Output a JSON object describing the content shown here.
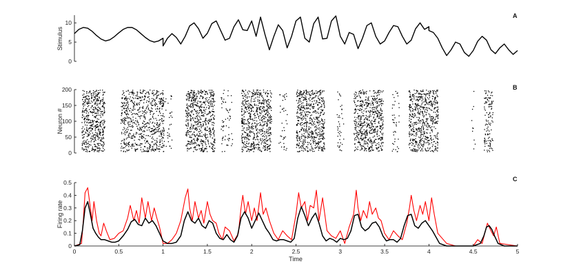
{
  "chart_data": [
    {
      "panel": "A",
      "type": "line",
      "ylabel": "Stimulus",
      "xlim": [
        0,
        5
      ],
      "ylim": [
        0,
        12
      ],
      "yticks": [
        0,
        5,
        10
      ],
      "series": [
        {
          "color": "#000000",
          "x": [
            0,
            0.05,
            0.1,
            0.15,
            0.2,
            0.25,
            0.3,
            0.35,
            0.4,
            0.45,
            0.5,
            0.55,
            0.6,
            0.65,
            0.7,
            0.75,
            0.8,
            0.85,
            0.9,
            0.95,
            1.0,
            1.0,
            1.05,
            1.1,
            1.15,
            1.2,
            1.25,
            1.3,
            1.35,
            1.4,
            1.45,
            1.5,
            1.55,
            1.6,
            1.65,
            1.7,
            1.75,
            1.8,
            1.85,
            1.9,
            1.95,
            2.0,
            2.05,
            2.1,
            2.15,
            2.2,
            2.25,
            2.3,
            2.35,
            2.4,
            2.45,
            2.5,
            2.55,
            2.6,
            2.65,
            2.7,
            2.75,
            2.8,
            2.85,
            2.9,
            2.95,
            3.0,
            3.05,
            3.1,
            3.15,
            3.2,
            3.25,
            3.3,
            3.35,
            3.4,
            3.45,
            3.5,
            3.55,
            3.6,
            3.65,
            3.7,
            3.75,
            3.8,
            3.85,
            3.9,
            3.95,
            4.0,
            4.0,
            4.05,
            4.1,
            4.15,
            4.2,
            4.25,
            4.3,
            4.35,
            4.4,
            4.45,
            4.5,
            4.55,
            4.6,
            4.65,
            4.7,
            4.75,
            4.8,
            4.85,
            4.9,
            4.95,
            5.0
          ],
          "y": [
            7.2,
            8.3,
            8.8,
            8.6,
            7.8,
            6.7,
            5.8,
            5.3,
            5.6,
            6.4,
            7.4,
            8.3,
            8.8,
            8.8,
            8.2,
            7.2,
            6.2,
            5.4,
            5.0,
            5.3,
            6.0,
            4.0,
            6.0,
            7.2,
            6.2,
            4.5,
            6.5,
            9.2,
            10.0,
            8.5,
            6.0,
            7.3,
            9.8,
            10.5,
            8.0,
            5.5,
            6.0,
            9.0,
            10.8,
            8.2,
            8.0,
            10.5,
            6.5,
            11.5,
            7.0,
            3.0,
            6.5,
            9.5,
            8.0,
            3.5,
            6.5,
            10.5,
            11.5,
            6.0,
            5.0,
            9.8,
            11.5,
            5.8,
            6.0,
            10.5,
            11.8,
            6.5,
            4.5,
            7.5,
            7.0,
            3.3,
            6.0,
            9.3,
            10.0,
            6.5,
            4.5,
            5.3,
            7.5,
            9.3,
            9.0,
            6.5,
            4.5,
            5.5,
            8.5,
            10.0,
            8.3,
            9.0,
            8.0,
            7.5,
            6.0,
            3.5,
            1.5,
            3.0,
            5.0,
            4.5,
            2.3,
            1.3,
            2.8,
            5.2,
            6.5,
            5.5,
            3.0,
            2.0,
            3.5,
            4.5,
            3.0,
            1.8,
            2.8
          ]
        }
      ]
    },
    {
      "panel": "B",
      "type": "scatter",
      "ylabel": "Neuron #",
      "xlim": [
        0,
        5
      ],
      "ylim": [
        0,
        200
      ],
      "yticks": [
        0,
        50,
        100,
        150,
        200
      ],
      "marker_color": "#000000",
      "burst_segments": [
        {
          "x": [
            0.08,
            0.34
          ],
          "neurons": [
            5,
            200
          ],
          "density": 520
        },
        {
          "x": [
            0.52,
            1.01
          ],
          "neurons": [
            5,
            200
          ],
          "density": 720
        },
        {
          "x": [
            1.02,
            1.1
          ],
          "neurons": [
            5,
            200
          ],
          "density": 30
        },
        {
          "x": [
            1.25,
            1.58
          ],
          "neurons": [
            5,
            200
          ],
          "density": 620
        },
        {
          "x": [
            1.65,
            1.78
          ],
          "neurons": [
            5,
            200
          ],
          "density": 60
        },
        {
          "x": [
            1.88,
            2.22
          ],
          "neurons": [
            5,
            200
          ],
          "density": 640
        },
        {
          "x": [
            2.3,
            2.4
          ],
          "neurons": [
            5,
            200
          ],
          "density": 40
        },
        {
          "x": [
            2.5,
            2.82
          ],
          "neurons": [
            5,
            200
          ],
          "density": 620
        },
        {
          "x": [
            2.96,
            3.04
          ],
          "neurons": [
            5,
            200
          ],
          "density": 40
        },
        {
          "x": [
            3.15,
            3.48
          ],
          "neurons": [
            5,
            200
          ],
          "density": 600
        },
        {
          "x": [
            3.58,
            3.66
          ],
          "neurons": [
            5,
            200
          ],
          "density": 40
        },
        {
          "x": [
            3.77,
            4.1
          ],
          "neurons": [
            5,
            200
          ],
          "density": 600
        },
        {
          "x": [
            4.62,
            4.72
          ],
          "neurons": [
            5,
            200
          ],
          "density": 120
        },
        {
          "x": [
            4.47,
            4.52
          ],
          "neurons": [
            5,
            200
          ],
          "density": 10
        }
      ]
    },
    {
      "panel": "C",
      "type": "line",
      "xlabel": "Time",
      "ylabel": "Firing rate",
      "xlim": [
        0,
        5
      ],
      "ylim": [
        0,
        0.5
      ],
      "yticks": [
        0,
        0.1,
        0.2,
        0.3,
        0.4,
        0.5
      ],
      "xticks": [
        0,
        0.5,
        1,
        1.5,
        2,
        2.5,
        3,
        3.5,
        4,
        4.5,
        5
      ],
      "series": [
        {
          "color": "#ff0000",
          "x": [
            0,
            0.08,
            0.1,
            0.12,
            0.15,
            0.18,
            0.2,
            0.22,
            0.25,
            0.28,
            0.3,
            0.33,
            0.36,
            0.4,
            0.45,
            0.5,
            0.55,
            0.6,
            0.63,
            0.67,
            0.7,
            0.73,
            0.76,
            0.8,
            0.83,
            0.87,
            0.9,
            0.93,
            0.96,
            1.0,
            1.05,
            1.1,
            1.15,
            1.2,
            1.25,
            1.28,
            1.3,
            1.33,
            1.36,
            1.4,
            1.43,
            1.46,
            1.5,
            1.53,
            1.56,
            1.6,
            1.63,
            1.67,
            1.7,
            1.75,
            1.8,
            1.85,
            1.88,
            1.9,
            1.93,
            1.96,
            2.0,
            2.03,
            2.06,
            2.1,
            2.13,
            2.16,
            2.2,
            2.25,
            2.3,
            2.35,
            2.4,
            2.45,
            2.5,
            2.53,
            2.56,
            2.6,
            2.63,
            2.66,
            2.7,
            2.73,
            2.76,
            2.8,
            2.85,
            2.9,
            2.95,
            3.0,
            3.05,
            3.1,
            3.15,
            3.18,
            3.2,
            3.23,
            3.26,
            3.3,
            3.33,
            3.36,
            3.4,
            3.43,
            3.46,
            3.5,
            3.55,
            3.6,
            3.65,
            3.7,
            3.75,
            3.78,
            3.8,
            3.83,
            3.86,
            3.9,
            3.93,
            3.96,
            4.0,
            4.03,
            4.06,
            4.1,
            4.2,
            4.3,
            4.4,
            4.5,
            4.55,
            4.6,
            4.63,
            4.66,
            4.7,
            4.73,
            4.76,
            4.8,
            5.0
          ],
          "y": [
            0,
            0.02,
            0.2,
            0.42,
            0.46,
            0.3,
            0.2,
            0.35,
            0.2,
            0.1,
            0.08,
            0.18,
            0.12,
            0.05,
            0.06,
            0.1,
            0.12,
            0.22,
            0.32,
            0.2,
            0.28,
            0.18,
            0.38,
            0.22,
            0.35,
            0.2,
            0.3,
            0.22,
            0.15,
            0.02,
            0.02,
            0.05,
            0.1,
            0.2,
            0.38,
            0.45,
            0.3,
            0.2,
            0.35,
            0.22,
            0.28,
            0.18,
            0.35,
            0.25,
            0.2,
            0.18,
            0.1,
            0.05,
            0.15,
            0.12,
            0.04,
            0.1,
            0.3,
            0.4,
            0.25,
            0.35,
            0.2,
            0.3,
            0.2,
            0.42,
            0.25,
            0.3,
            0.2,
            0.1,
            0.05,
            0.12,
            0.08,
            0.05,
            0.25,
            0.42,
            0.3,
            0.35,
            0.2,
            0.32,
            0.3,
            0.44,
            0.2,
            0.38,
            0.12,
            0.08,
            0.06,
            0.12,
            0.02,
            0.15,
            0.25,
            0.44,
            0.3,
            0.2,
            0.28,
            0.22,
            0.35,
            0.25,
            0.3,
            0.22,
            0.2,
            0.1,
            0.05,
            0.12,
            0.08,
            0.05,
            0.18,
            0.3,
            0.4,
            0.28,
            0.2,
            0.32,
            0.25,
            0.35,
            0.2,
            0.38,
            0.25,
            0.1,
            0.02,
            0.0,
            0.0,
            0.0,
            0.05,
            0.02,
            0.1,
            0.18,
            0.12,
            0.08,
            0.15,
            0.02,
            0.0
          ]
        },
        {
          "color": "#000000",
          "x": [
            0,
            0.06,
            0.09,
            0.12,
            0.15,
            0.18,
            0.21,
            0.24,
            0.27,
            0.3,
            0.34,
            0.38,
            0.42,
            0.46,
            0.5,
            0.55,
            0.6,
            0.64,
            0.68,
            0.72,
            0.76,
            0.8,
            0.84,
            0.88,
            0.92,
            0.96,
            1.0,
            1.05,
            1.1,
            1.15,
            1.2,
            1.24,
            1.28,
            1.32,
            1.36,
            1.4,
            1.44,
            1.48,
            1.52,
            1.56,
            1.6,
            1.64,
            1.68,
            1.72,
            1.76,
            1.8,
            1.84,
            1.88,
            1.92,
            1.96,
            2.0,
            2.04,
            2.08,
            2.12,
            2.16,
            2.2,
            2.24,
            2.28,
            2.32,
            2.36,
            2.4,
            2.44,
            2.48,
            2.52,
            2.56,
            2.6,
            2.64,
            2.68,
            2.72,
            2.76,
            2.8,
            2.84,
            2.88,
            2.92,
            2.96,
            3.0,
            3.04,
            3.08,
            3.12,
            3.16,
            3.2,
            3.24,
            3.28,
            3.32,
            3.36,
            3.4,
            3.44,
            3.48,
            3.52,
            3.56,
            3.6,
            3.64,
            3.68,
            3.72,
            3.76,
            3.8,
            3.84,
            3.88,
            3.92,
            3.96,
            4.0,
            4.04,
            4.08,
            4.12,
            4.2,
            4.3,
            4.4,
            4.5,
            4.58,
            4.62,
            4.65,
            4.68,
            4.71,
            4.74,
            4.78,
            4.85,
            5.0
          ],
          "y": [
            0,
            0.01,
            0.12,
            0.3,
            0.35,
            0.25,
            0.14,
            0.1,
            0.07,
            0.05,
            0.05,
            0.04,
            0.03,
            0.03,
            0.04,
            0.08,
            0.13,
            0.19,
            0.21,
            0.17,
            0.16,
            0.22,
            0.18,
            0.2,
            0.16,
            0.1,
            0.04,
            0.02,
            0.02,
            0.03,
            0.08,
            0.2,
            0.27,
            0.2,
            0.18,
            0.22,
            0.16,
            0.14,
            0.2,
            0.18,
            0.1,
            0.06,
            0.05,
            0.09,
            0.05,
            0.03,
            0.08,
            0.22,
            0.27,
            0.22,
            0.14,
            0.2,
            0.26,
            0.2,
            0.14,
            0.1,
            0.05,
            0.04,
            0.05,
            0.05,
            0.04,
            0.03,
            0.06,
            0.22,
            0.31,
            0.24,
            0.16,
            0.22,
            0.26,
            0.18,
            0.08,
            0.04,
            0.06,
            0.05,
            0.03,
            0.06,
            0.05,
            0.06,
            0.12,
            0.24,
            0.25,
            0.15,
            0.12,
            0.14,
            0.18,
            0.19,
            0.15,
            0.08,
            0.04,
            0.05,
            0.05,
            0.03,
            0.06,
            0.16,
            0.24,
            0.25,
            0.16,
            0.14,
            0.18,
            0.2,
            0.16,
            0.12,
            0.07,
            0.02,
            0.0,
            0.0,
            0.0,
            0.0,
            0.02,
            0.08,
            0.15,
            0.16,
            0.13,
            0.08,
            0.02,
            0.0,
            0.0
          ]
        }
      ]
    }
  ]
}
